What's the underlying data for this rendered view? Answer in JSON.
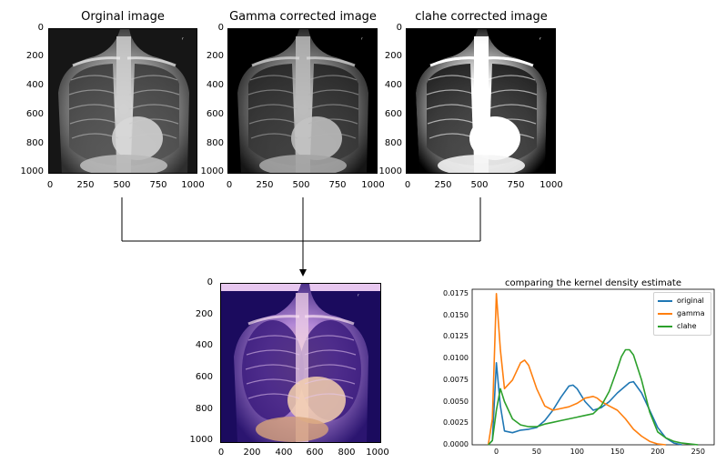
{
  "panels": [
    {
      "title": "Orginal image",
      "yticks": [
        "0",
        "200",
        "400",
        "600",
        "800",
        "1000"
      ],
      "xticks": [
        "0",
        "250",
        "500",
        "750",
        "1000"
      ],
      "mode": "original"
    },
    {
      "title": "Gamma corrected image",
      "yticks": [
        "0",
        "200",
        "400",
        "600",
        "800",
        "1000"
      ],
      "xticks": [
        "0",
        "250",
        "500",
        "750",
        "1000"
      ],
      "mode": "gamma"
    },
    {
      "title": "clahe corrected image",
      "yticks": [
        "0",
        "200",
        "400",
        "600",
        "800",
        "1000"
      ],
      "xticks": [
        "0",
        "250",
        "500",
        "750",
        "1000"
      ],
      "mode": "clahe"
    }
  ],
  "fused": {
    "yticks": [
      "0",
      "200",
      "400",
      "600",
      "800",
      "1000"
    ],
    "xticks": [
      "0",
      "200",
      "400",
      "600",
      "800",
      "1000"
    ]
  },
  "kde_chart": {
    "title": "comparing the kernel density estimate",
    "yticks": [
      "0.0000",
      "0.0025",
      "0.0050",
      "0.0075",
      "0.0100",
      "0.0125",
      "0.0150",
      "0.0175"
    ],
    "xticks": [
      "0",
      "50",
      "100",
      "150",
      "200",
      "250"
    ],
    "legend": [
      "original",
      "gamma",
      "clahe"
    ]
  },
  "chart_data": {
    "type": "line",
    "title": "comparing the kernel density estimate",
    "xlabel": "",
    "ylabel": "",
    "xlim": [
      -30,
      270
    ],
    "ylim": [
      0,
      0.018
    ],
    "legend_position": "top-right",
    "series": [
      {
        "name": "original",
        "color": "#1f77b4",
        "x": [
          -10,
          -5,
          0,
          5,
          10,
          20,
          30,
          40,
          50,
          60,
          70,
          80,
          90,
          95,
          100,
          110,
          120,
          130,
          140,
          150,
          160,
          165,
          170,
          180,
          190,
          200,
          210,
          220,
          230
        ],
        "y": [
          0,
          0.0005,
          0.0095,
          0.0045,
          0.0016,
          0.0014,
          0.0017,
          0.0018,
          0.002,
          0.0028,
          0.004,
          0.0055,
          0.0068,
          0.0069,
          0.0065,
          0.005,
          0.004,
          0.0043,
          0.005,
          0.006,
          0.0068,
          0.0072,
          0.0073,
          0.006,
          0.004,
          0.002,
          0.0008,
          0.0002,
          0
        ]
      },
      {
        "name": "gamma",
        "color": "#ff7f0e",
        "x": [
          -10,
          -5,
          0,
          5,
          10,
          20,
          30,
          35,
          40,
          50,
          60,
          70,
          80,
          90,
          100,
          110,
          120,
          125,
          130,
          140,
          150,
          160,
          170,
          180,
          190,
          200,
          210
        ],
        "y": [
          0,
          0.003,
          0.0175,
          0.011,
          0.0065,
          0.0075,
          0.0095,
          0.0098,
          0.0092,
          0.0065,
          0.0045,
          0.004,
          0.0042,
          0.0044,
          0.0048,
          0.0054,
          0.0056,
          0.0054,
          0.005,
          0.0045,
          0.004,
          0.003,
          0.0018,
          0.001,
          0.0004,
          0.0001,
          0
        ]
      },
      {
        "name": "clahe",
        "color": "#2ca02c",
        "x": [
          -10,
          -5,
          0,
          5,
          10,
          20,
          30,
          40,
          50,
          60,
          70,
          80,
          90,
          100,
          110,
          120,
          130,
          140,
          150,
          155,
          160,
          165,
          170,
          180,
          190,
          200,
          210,
          220,
          230,
          240,
          250
        ],
        "y": [
          0,
          0.0005,
          0.004,
          0.0065,
          0.005,
          0.003,
          0.0023,
          0.0021,
          0.0021,
          0.0024,
          0.0026,
          0.0028,
          0.003,
          0.0032,
          0.0034,
          0.0036,
          0.0045,
          0.0062,
          0.0088,
          0.0102,
          0.011,
          0.011,
          0.0104,
          0.0075,
          0.0038,
          0.0015,
          0.0008,
          0.0004,
          0.0002,
          0.0001,
          0
        ]
      }
    ]
  }
}
